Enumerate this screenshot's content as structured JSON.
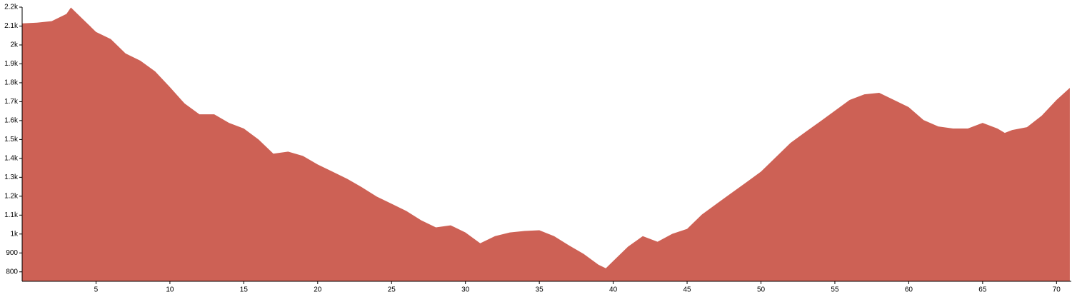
{
  "chart_data": {
    "type": "area",
    "color": "#cd6155",
    "x": [
      0,
      1,
      2,
      3,
      3.3,
      4,
      5,
      6,
      7,
      8,
      9,
      10,
      11,
      12,
      13,
      14,
      15,
      16,
      17,
      18,
      19,
      20,
      21,
      22,
      23,
      24,
      25,
      26,
      27,
      28,
      29,
      30,
      31,
      32,
      33,
      34,
      35,
      36,
      37,
      38,
      39,
      39.5,
      40,
      41,
      42,
      43,
      44,
      45,
      46,
      47,
      48,
      49,
      50,
      51,
      52,
      53,
      54,
      55,
      56,
      57,
      58,
      59,
      60,
      61,
      62,
      63,
      64,
      65,
      66,
      66.5,
      67,
      68,
      69,
      70,
      70.9
    ],
    "values": [
      2114,
      2118,
      2126,
      2164,
      2198,
      2145,
      2069,
      2031,
      1955,
      1917,
      1860,
      1777,
      1690,
      1633,
      1633,
      1588,
      1558,
      1500,
      1425,
      1436,
      1413,
      1368,
      1330,
      1292,
      1247,
      1198,
      1160,
      1122,
      1073,
      1035,
      1046,
      1008,
      951,
      989,
      1008,
      1016,
      1020,
      989,
      940,
      895,
      838,
      819,
      857,
      933,
      989,
      959,
      1001,
      1027,
      1103,
      1160,
      1217,
      1273,
      1330,
      1406,
      1482,
      1539,
      1595,
      1652,
      1709,
      1739,
      1747,
      1709,
      1671,
      1603,
      1569,
      1558,
      1558,
      1588,
      1558,
      1535,
      1550,
      1565,
      1626,
      1709,
      1773
    ],
    "xlim": [
      0,
      71
    ],
    "ylim": [
      750,
      2200
    ],
    "xticks": [
      5,
      10,
      15,
      20,
      25,
      30,
      35,
      40,
      45,
      50,
      55,
      60,
      65,
      70
    ],
    "yticks": [
      800,
      900,
      {
        "value": 1000,
        "label": "1k"
      },
      {
        "value": 1100,
        "label": "1.1k"
      },
      {
        "value": 1200,
        "label": "1.2k"
      },
      {
        "value": 1300,
        "label": "1.3k"
      },
      {
        "value": 1400,
        "label": "1.4k"
      },
      {
        "value": 1500,
        "label": "1.5k"
      },
      {
        "value": 1600,
        "label": "1.6k"
      },
      {
        "value": 1700,
        "label": "1.7k"
      },
      {
        "value": 1800,
        "label": "1.8k"
      },
      {
        "value": 1900,
        "label": "1.9k"
      },
      {
        "value": 2000,
        "label": "2k"
      },
      {
        "value": 2100,
        "label": "2.1k"
      },
      {
        "value": 2200,
        "label": "2.2k"
      }
    ]
  }
}
